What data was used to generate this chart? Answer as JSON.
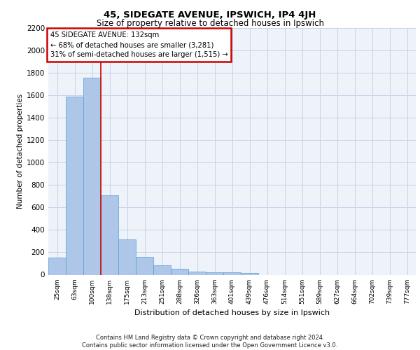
{
  "title_line1": "45, SIDEGATE AVENUE, IPSWICH, IP4 4JH",
  "title_line2": "Size of property relative to detached houses in Ipswich",
  "xlabel": "Distribution of detached houses by size in Ipswich",
  "ylabel": "Number of detached properties",
  "categories": [
    "25sqm",
    "63sqm",
    "100sqm",
    "138sqm",
    "175sqm",
    "213sqm",
    "251sqm",
    "288sqm",
    "326sqm",
    "363sqm",
    "401sqm",
    "439sqm",
    "476sqm",
    "514sqm",
    "551sqm",
    "589sqm",
    "627sqm",
    "664sqm",
    "702sqm",
    "739sqm",
    "777sqm"
  ],
  "values": [
    155,
    1590,
    1760,
    710,
    315,
    160,
    85,
    50,
    30,
    20,
    20,
    15,
    0,
    0,
    0,
    0,
    0,
    0,
    0,
    0,
    0
  ],
  "bar_color": "#aec6e8",
  "bar_edge_color": "#5a9fd4",
  "vline_color": "#cc0000",
  "annotation_text": "45 SIDEGATE AVENUE: 132sqm\n← 68% of detached houses are smaller (3,281)\n31% of semi-detached houses are larger (1,515) →",
  "annotation_box_color": "#cc0000",
  "ylim": [
    0,
    2200
  ],
  "yticks": [
    0,
    200,
    400,
    600,
    800,
    1000,
    1200,
    1400,
    1600,
    1800,
    2000,
    2200
  ],
  "grid_color": "#c8d4e8",
  "bg_color": "#eef2f9",
  "footer": "Contains HM Land Registry data © Crown copyright and database right 2024.\nContains public sector information licensed under the Open Government Licence v3.0."
}
